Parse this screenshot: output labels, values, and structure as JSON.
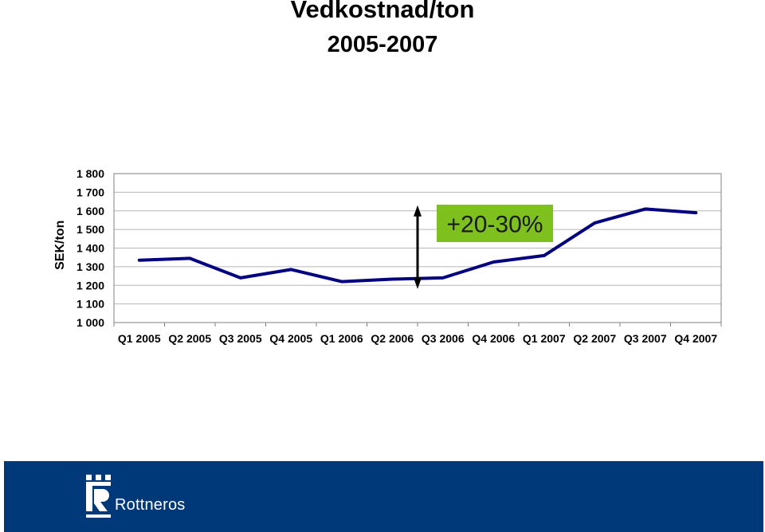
{
  "chart_data": {
    "type": "line",
    "title": "Vedkostnad/ton",
    "subtitle": "2005-2007",
    "ylabel": "SEK/ton",
    "xlabel": "",
    "categories": [
      "Q1 2005",
      "Q2 2005",
      "Q3 2005",
      "Q4 2005",
      "Q1 2006",
      "Q2 2006",
      "Q3 2006",
      "Q4 2006",
      "Q1 2007",
      "Q2 2007",
      "Q3 2007",
      "Q4 2007"
    ],
    "y_ticks": [
      "1 000",
      "1 100",
      "1 200",
      "1 300",
      "1 400",
      "1 500",
      "1 600",
      "1 700",
      "1 800"
    ],
    "ylim": [
      1000,
      1800
    ],
    "grid": true,
    "series": [
      {
        "values": [
          1335,
          1345,
          1240,
          1285,
          1220,
          1233,
          1240,
          1325,
          1360,
          1535,
          1610,
          1590
        ]
      }
    ],
    "annotation": {
      "text": "+20-30%",
      "arrow_range": [
        1180,
        1630
      ],
      "arrow_position": "between Q2 2006 and Q3 2006"
    },
    "colors": {
      "line": "#000080",
      "annotation_bg": "#7ec01e",
      "grid": "#b7b7b7"
    }
  },
  "footer": {
    "brand": "Rottneros",
    "background_color": "#00397a"
  }
}
